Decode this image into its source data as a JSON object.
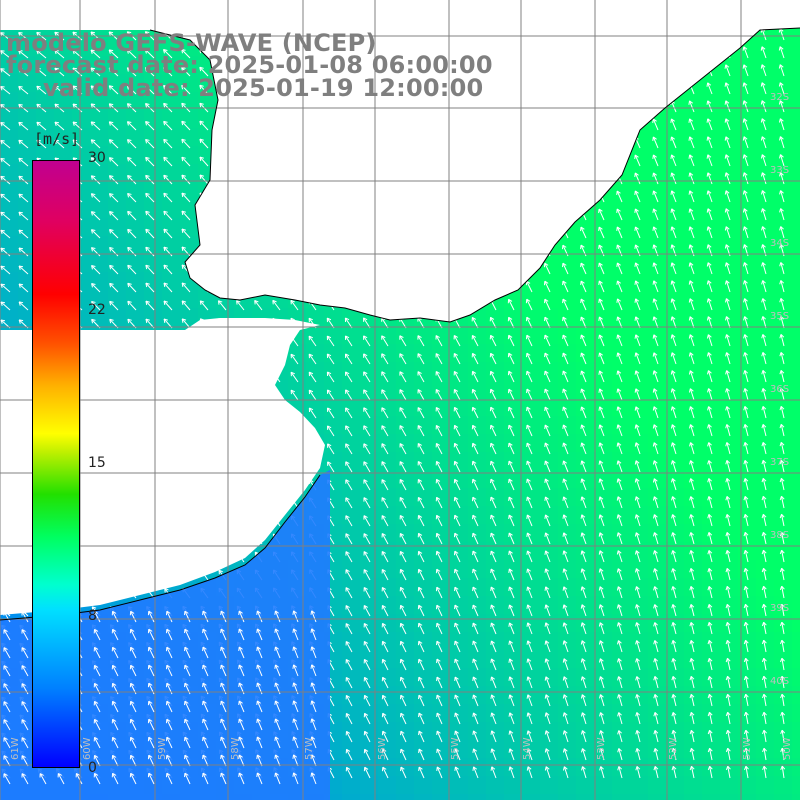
{
  "title": {
    "line1": "modelo GEFS-WAVE (NCEP)",
    "line2": "forecast date: 2025-01-08 06:00:00",
    "line3": "valid date: 2025-01-19 12:00:00"
  },
  "colorbar": {
    "unit": "[m/s]",
    "ticks": [
      "30",
      "22",
      "15",
      "8",
      "0"
    ],
    "tick_values": [
      30,
      22,
      15,
      8,
      0
    ],
    "range": [
      0,
      30
    ],
    "colors": [
      "#0000ff",
      "#00e0ff",
      "#00ff60",
      "#ffff00",
      "#ff0000",
      "#c00090"
    ]
  },
  "map": {
    "grid": true,
    "land_color": "#ffffff",
    "coastline_color": "#000000",
    "grid_color": "#808080",
    "arrow_color": "#ffffff",
    "lat_labels": [
      "32S",
      "33S",
      "34S",
      "35S",
      "36S",
      "37S",
      "38S",
      "39S",
      "40S"
    ],
    "lon_labels": [
      "61W",
      "60W",
      "59W",
      "58W",
      "57W",
      "56W",
      "55W",
      "54W",
      "53W",
      "52W",
      "51W",
      "50W"
    ]
  }
}
